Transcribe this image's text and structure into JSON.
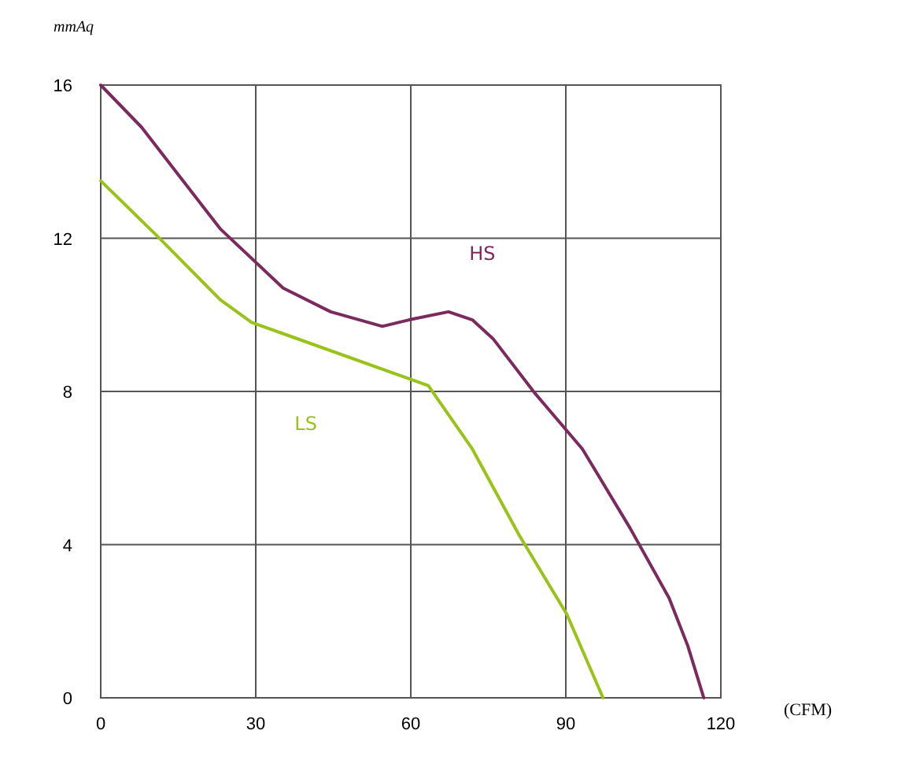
{
  "chart_data": {
    "type": "line",
    "xlabel": "(CFM)",
    "ylabel": "mmAq",
    "xlim": [
      0,
      120
    ],
    "xticks": [
      0,
      30,
      60,
      90,
      120
    ],
    "ylim": [
      0,
      16
    ],
    "yticks": [
      0,
      4,
      8,
      12,
      16
    ],
    "grid": true,
    "marker": "none",
    "line_style": "solid",
    "series": [
      {
        "name": "HS",
        "color": "#7b2a5e",
        "x": [
          0,
          7.9,
          23.1,
          35.3,
          44.5,
          54.5,
          59.7,
          67.3,
          71.9,
          75.9,
          84.1,
          93.2,
          102.4,
          110,
          113.6,
          116.7
        ],
        "values": [
          16,
          14.9,
          12.25,
          10.7,
          10.08,
          9.7,
          9.87,
          10.08,
          9.87,
          9.38,
          7.94,
          6.5,
          4.44,
          2.6,
          1.36,
          0
        ]
      },
      {
        "name": "LS",
        "color": "#99c31a",
        "x": [
          0,
          11,
          23.1,
          29.2,
          36.3,
          63.4,
          71.9,
          81,
          90.2,
          97.2
        ],
        "values": [
          13.5,
          12.05,
          10.4,
          9.8,
          9.46,
          8.15,
          6.5,
          4.24,
          2.18,
          0
        ]
      }
    ]
  }
}
